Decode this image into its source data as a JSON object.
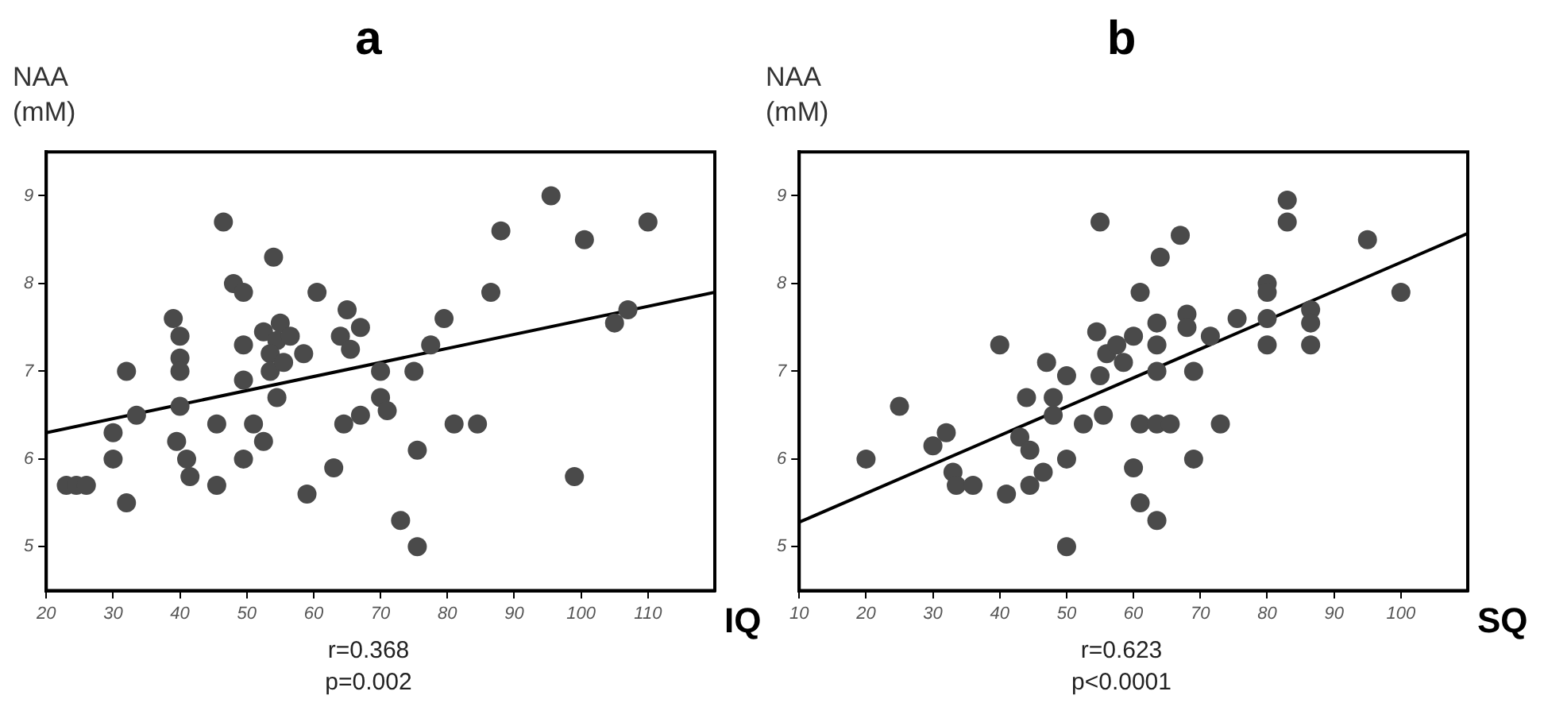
{
  "chart_data": [
    {
      "type": "scatter",
      "title": "a",
      "ylabel": "NAA (mM)",
      "xlabel": "IQ",
      "xlim": [
        20,
        120
      ],
      "xticks": [
        20,
        30,
        40,
        50,
        60,
        70,
        80,
        90,
        100,
        110
      ],
      "ylim": [
        4.5,
        9.5
      ],
      "yticks": [
        5,
        6,
        7,
        8,
        9
      ],
      "annotations": [
        "r=0.368",
        "p=0.002"
      ],
      "series": [
        {
          "marker": "circle",
          "color": "#4a4a4a",
          "x": [
            23,
            24.5,
            26,
            30,
            30,
            32,
            32,
            33.5,
            39,
            40,
            40,
            40,
            40,
            39.5,
            41,
            41.5,
            45.5,
            45.5,
            46.5,
            48,
            49.5,
            49.5,
            49.5,
            49.5,
            51,
            52.5,
            54,
            52.5,
            55,
            54.5,
            56.5,
            53.5,
            53.5,
            54.5,
            55.5,
            58.5,
            60.5,
            59,
            63,
            64.5,
            65,
            64,
            65.5,
            67,
            67,
            70,
            75,
            70,
            71,
            75.5,
            73,
            75.5,
            77.5,
            79.5,
            81,
            84.5,
            86.5,
            88,
            95.5,
            99,
            100.5,
            105,
            107,
            110
          ],
          "values": [
            5.7,
            5.7,
            5.7,
            6.3,
            6.0,
            7.0,
            5.5,
            6.5,
            7.6,
            7.4,
            7.15,
            7.0,
            6.6,
            6.2,
            6.0,
            5.8,
            6.4,
            5.7,
            8.7,
            8.0,
            7.9,
            7.3,
            6.9,
            6.0,
            6.4,
            6.2,
            8.3,
            7.45,
            7.55,
            7.35,
            7.4,
            7.2,
            7.0,
            6.7,
            7.1,
            7.2,
            7.9,
            5.6,
            5.9,
            6.4,
            7.7,
            7.4,
            7.25,
            6.5,
            7.5,
            7.0,
            7.0,
            6.7,
            6.55,
            6.1,
            5.3,
            5.0,
            7.3,
            7.6,
            6.4,
            6.4,
            7.9,
            8.6,
            9.0,
            5.8,
            8.5,
            7.55,
            7.7,
            8.7
          ]
        },
        {
          "type": "line",
          "color": "#000000",
          "x": [
            20,
            120
          ],
          "values": [
            6.3,
            7.9
          ]
        }
      ]
    },
    {
      "type": "scatter",
      "title": "b",
      "ylabel": "NAA (mM)",
      "xlabel": "SQ",
      "xlim": [
        10,
        110
      ],
      "xticks": [
        10,
        20,
        30,
        40,
        50,
        60,
        70,
        80,
        90,
        100
      ],
      "ylim": [
        4.5,
        9.5
      ],
      "yticks": [
        5,
        6,
        7,
        8,
        9
      ],
      "annotations": [
        "r=0.623",
        "p<0.0001"
      ],
      "series": [
        {
          "marker": "circle",
          "color": "#4a4a4a",
          "x": [
            20,
            25,
            30,
            32,
            33,
            33.5,
            36,
            40,
            41,
            43,
            44.5,
            44,
            44.5,
            46.5,
            47,
            50,
            48,
            48,
            50,
            50,
            52.5,
            55,
            54.5,
            55,
            55.5,
            56,
            57.5,
            60,
            58.5,
            61,
            64,
            67,
            63.5,
            63.5,
            63.5,
            68,
            68,
            69,
            71.5,
            61,
            63.5,
            65.5,
            73,
            69,
            60,
            61,
            63.5,
            75.5,
            80,
            80,
            80,
            80,
            83,
            83,
            86.5,
            86.5,
            86.5,
            95,
            100
          ],
          "values": [
            6.0,
            6.6,
            6.15,
            6.3,
            5.85,
            5.7,
            5.7,
            7.3,
            5.6,
            6.25,
            6.1,
            6.7,
            5.7,
            5.85,
            7.1,
            6.95,
            6.7,
            6.5,
            6.0,
            5.0,
            6.4,
            8.7,
            7.45,
            6.95,
            6.5,
            7.2,
            7.3,
            7.4,
            7.1,
            7.9,
            8.3,
            8.55,
            7.55,
            7.3,
            7.0,
            7.65,
            7.5,
            7.0,
            7.4,
            6.4,
            6.4,
            6.4,
            6.4,
            6.0,
            5.9,
            5.5,
            5.3,
            7.6,
            8.0,
            7.9,
            7.6,
            7.3,
            8.95,
            8.7,
            7.7,
            7.55,
            7.3,
            8.5,
            7.9
          ]
        },
        {
          "type": "line",
          "color": "#000000",
          "x": [
            10,
            110
          ],
          "values": [
            5.28,
            8.57
          ]
        }
      ]
    }
  ]
}
